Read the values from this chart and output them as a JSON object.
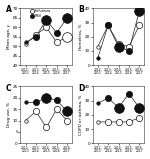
{
  "seasons": [
    "2012-\n2013",
    "2013-\n2014",
    "2014-\n2015",
    "2015-\n2016",
    "2016-\n2017"
  ],
  "panels": [
    {
      "label": "A",
      "ylabel": "Mean age, y",
      "ylim": [
        40,
        70
      ],
      "yticks": [
        40,
        45,
        50,
        55,
        60,
        65,
        70
      ],
      "influenza": [
        51,
        56,
        60,
        52,
        55
      ],
      "rsv": [
        52,
        55,
        64,
        57,
        65
      ],
      "influenza_sz": [
        "S",
        "M",
        "M",
        "M",
        "L"
      ],
      "rsv_sz": [
        "S",
        "M",
        "L",
        "M",
        "L"
      ]
    },
    {
      "label": "B",
      "ylabel": "Homeless, %",
      "ylim": [
        0,
        40
      ],
      "yticks": [
        0,
        10,
        20,
        30,
        40
      ],
      "influenza": [
        13,
        28,
        15,
        13,
        28
      ],
      "rsv": [
        5,
        28,
        13,
        10,
        38
      ],
      "influenza_sz": [
        "S",
        "M",
        "M",
        "M",
        "M"
      ],
      "rsv_sz": [
        "S",
        "M",
        "L",
        "M",
        "L"
      ]
    },
    {
      "label": "C",
      "ylabel": "Drug use, %",
      "ylim": [
        0,
        25
      ],
      "yticks": [
        0,
        5,
        10,
        15,
        20,
        25
      ],
      "influenza": [
        10,
        14,
        7,
        15,
        10
      ],
      "rsv": [
        18,
        18,
        20,
        19,
        14
      ],
      "influenza_sz": [
        "S",
        "M",
        "M",
        "M",
        "M"
      ],
      "rsv_sz": [
        "S",
        "M",
        "L",
        "M",
        "L"
      ]
    },
    {
      "label": "D",
      "ylabel": "COPD or asthma, %",
      "ylim": [
        0,
        40
      ],
      "yticks": [
        0,
        10,
        20,
        30,
        40
      ],
      "influenza": [
        15,
        15,
        15,
        15,
        18
      ],
      "rsv": [
        28,
        32,
        25,
        35,
        25
      ],
      "influenza_sz": [
        "S",
        "M",
        "M",
        "M",
        "M"
      ],
      "rsv_sz": [
        "S",
        "M",
        "L",
        "M",
        "L"
      ]
    }
  ],
  "size_map": {
    "S": 2.5,
    "M": 4.5,
    "L": 7.0
  },
  "bg_color": "#ffffff",
  "line_color": "#222222",
  "open_face": "#ffffff",
  "filled_face": "#111111",
  "edge_color": "#111111",
  "legend_labels": [
    "Influenza",
    "RSV"
  ]
}
